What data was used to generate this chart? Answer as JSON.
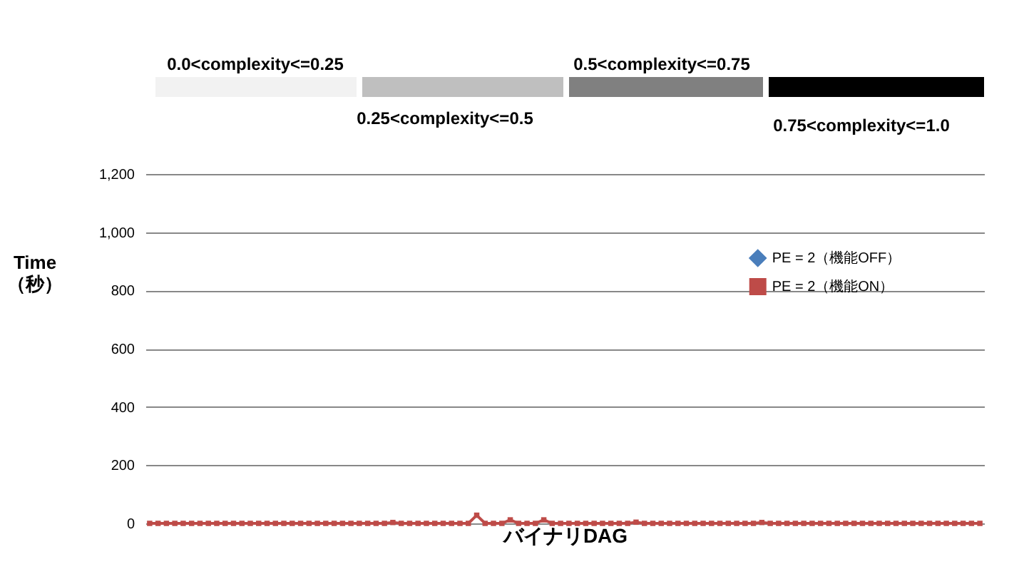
{
  "chart_data": {
    "type": "line",
    "xlabel": "バイナリDAG",
    "ylabel": "Time\n（秒）",
    "categories": [
      null,
      null,
      null,
      null,
      null,
      null,
      null,
      null,
      null,
      null,
      null,
      null,
      null,
      null,
      null,
      null,
      null,
      null,
      null,
      null,
      null,
      null,
      null,
      null,
      null,
      null,
      null,
      null,
      null,
      null,
      null,
      null,
      null,
      null,
      null,
      null,
      null,
      null,
      null,
      null,
      null,
      null,
      null,
      null,
      null,
      null,
      null,
      null,
      null,
      null,
      null,
      null,
      null,
      null,
      null,
      null,
      null,
      null,
      null,
      null,
      null,
      null,
      null,
      null,
      null,
      null,
      null,
      null,
      null,
      null,
      null,
      null,
      null,
      null,
      null,
      null,
      null,
      null,
      null,
      null,
      null,
      null,
      null,
      null,
      null,
      null,
      null,
      null,
      null,
      null,
      null,
      null,
      null,
      null,
      null,
      null,
      null,
      null,
      null,
      null
    ],
    "series": [
      {
        "name": "PE = 2（機能OFF）",
        "color": "#4a7ebb",
        "marker": "diamond",
        "values": [
          null,
          null,
          null,
          null,
          null,
          null,
          null,
          null,
          null,
          null,
          null,
          null,
          null,
          null,
          null,
          null,
          null,
          null,
          null,
          null,
          null,
          null,
          null,
          null,
          null,
          null,
          null,
          null,
          null,
          null,
          null,
          null,
          null,
          null,
          null,
          null,
          null,
          null,
          null,
          null,
          null,
          null,
          null,
          null,
          null,
          null,
          null,
          null,
          null,
          null,
          null,
          null,
          null,
          null,
          null,
          null,
          null,
          null,
          null,
          null,
          null,
          null,
          null,
          null,
          null,
          null,
          null,
          null,
          null,
          null,
          null,
          null,
          null,
          null,
          null,
          null,
          null,
          null,
          null,
          null,
          null,
          null,
          null,
          null,
          null,
          null,
          null,
          null,
          null,
          null,
          null,
          null,
          null,
          null,
          null,
          null,
          null,
          null,
          null,
          null
        ]
      },
      {
        "name": "PE = 2（機能ON）",
        "color": "#be4b48",
        "marker": "square",
        "values": [
          0,
          0,
          0,
          0,
          0,
          0,
          0,
          0,
          0,
          0,
          0,
          0,
          0,
          0,
          0,
          0,
          0,
          0,
          0,
          0,
          0,
          0,
          0,
          0,
          0,
          0,
          0,
          0,
          0,
          3,
          0,
          0,
          0,
          0,
          0,
          0,
          0,
          0,
          0,
          28,
          0,
          0,
          0,
          12,
          0,
          0,
          0,
          12,
          0,
          0,
          0,
          0,
          0,
          0,
          0,
          0,
          0,
          0,
          4,
          0,
          0,
          0,
          0,
          0,
          0,
          0,
          0,
          0,
          0,
          0,
          0,
          0,
          0,
          3,
          0,
          0,
          0,
          0,
          0,
          0,
          0,
          0,
          0,
          0,
          0,
          0,
          0,
          0,
          0,
          0,
          0,
          0,
          0,
          0,
          0,
          0,
          0,
          0,
          0,
          0
        ]
      }
    ],
    "ylim": [
      0,
      1200
    ],
    "yticks": [
      0,
      200,
      400,
      600,
      800,
      {
        "value": 1000,
        "label": "1,000"
      },
      {
        "value": 1200,
        "label": "1,200"
      }
    ],
    "grid": "y",
    "legend": "right",
    "tick_labels": "y",
    "line_style": "solid",
    "annotations": [
      "0.0<complexity<=0.25",
      "0.25<complexity<=0.5",
      "0.5<complexity<=0.75",
      "0.75<complexity<=1.0"
    ]
  }
}
